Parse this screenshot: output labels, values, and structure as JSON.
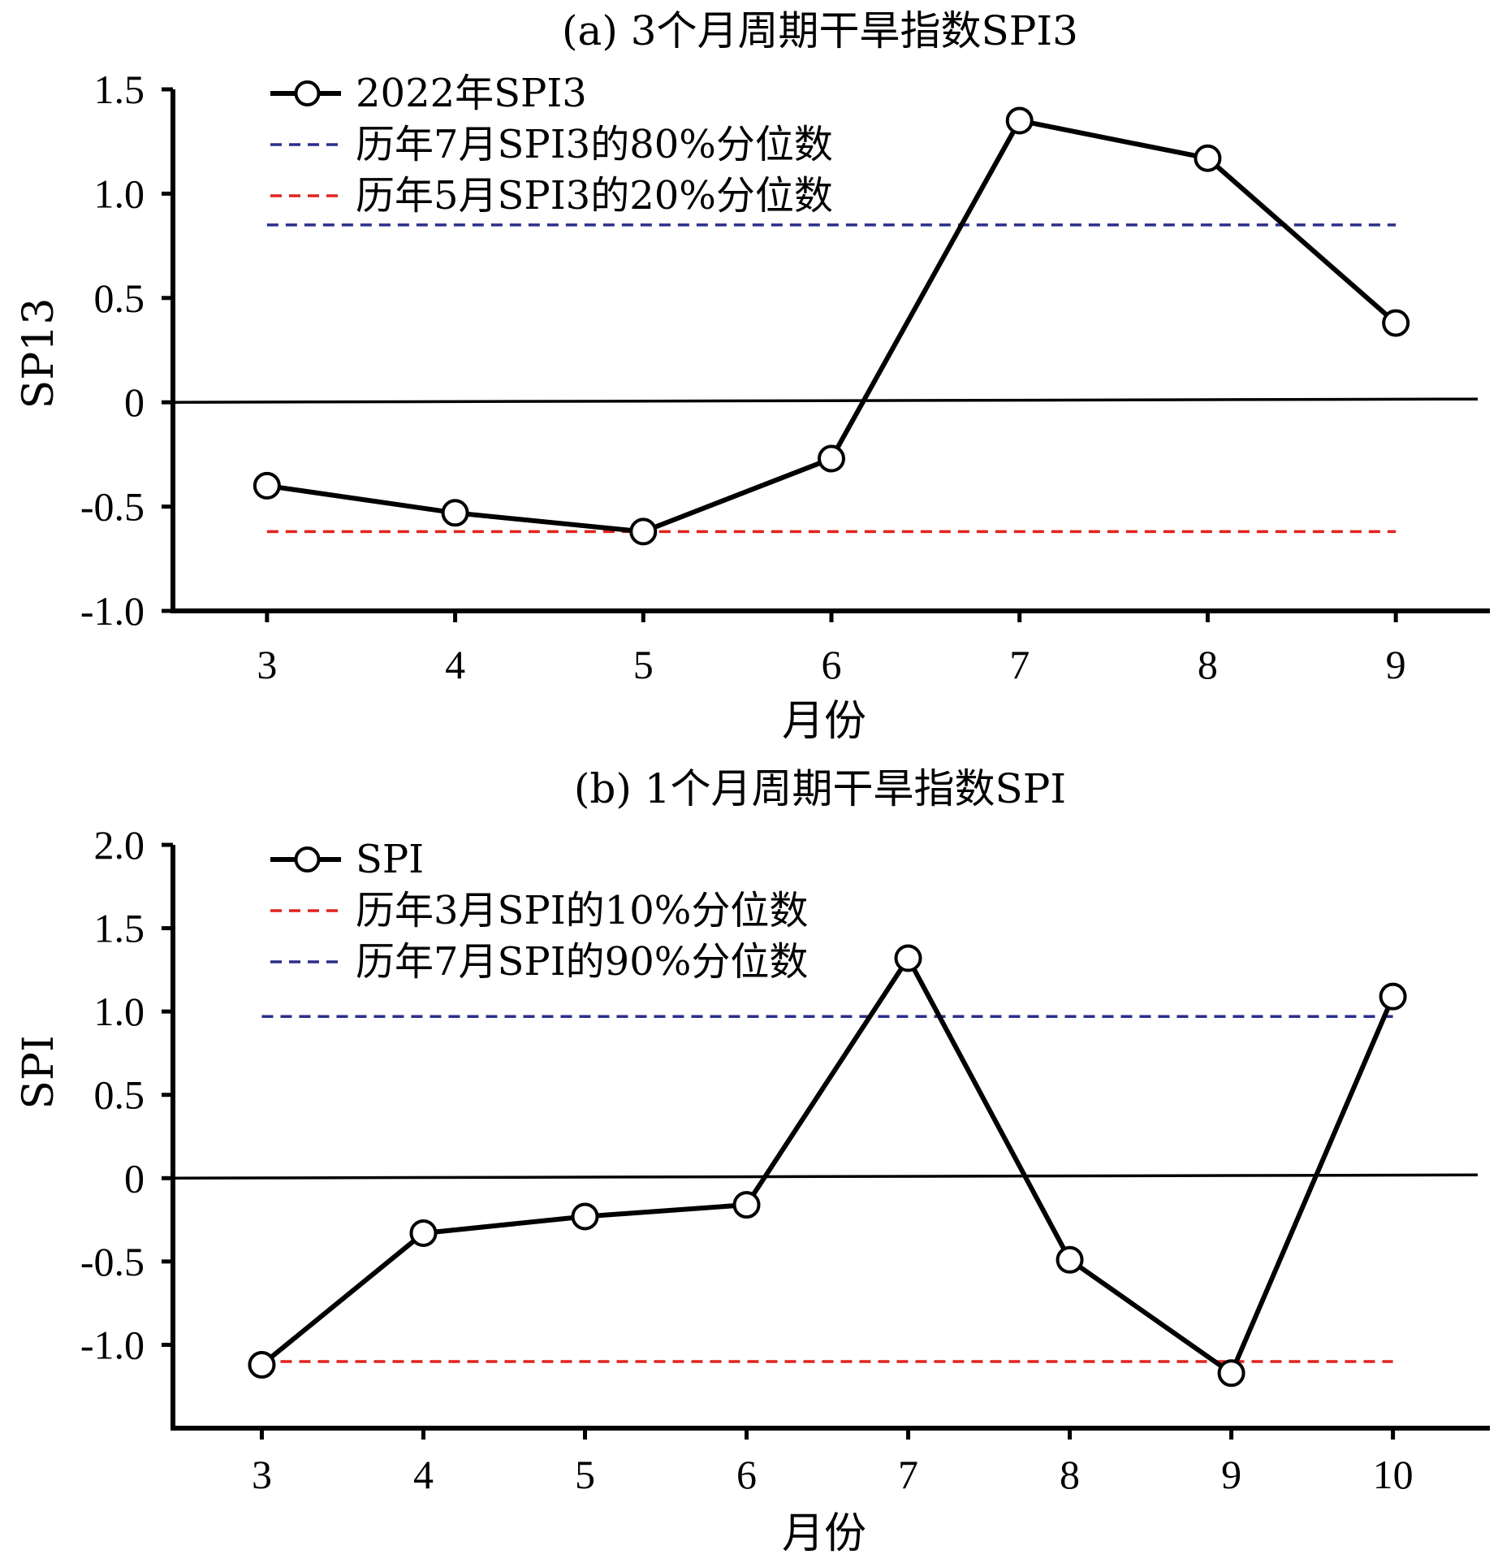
{
  "chart_data": [
    {
      "type": "line",
      "title": "(a) 3个月周期干旱指数SPI3",
      "xlabel": "月份",
      "ylabel": "SP13",
      "x": [
        3,
        4,
        5,
        6,
        7,
        8,
        9
      ],
      "xlim": [
        2.5,
        9.5
      ],
      "ylim": [
        -1.0,
        1.5
      ],
      "yticks": [
        -1.0,
        -0.5,
        0,
        0.5,
        1.0,
        1.5
      ],
      "ytick_labels": [
        "-1.0",
        "-0.5",
        "0",
        "0.5",
        "1.0",
        "1.5"
      ],
      "xtick_labels": [
        "3",
        "4",
        "5",
        "6",
        "7",
        "8",
        "9"
      ],
      "zero_line": true,
      "grid": false,
      "legend_position": "top-left",
      "series": [
        {
          "name": "2022年SPI3",
          "style": "solid-marker",
          "color": "#000000",
          "values": [
            -0.4,
            -0.53,
            -0.62,
            -0.27,
            1.35,
            1.17,
            0.38
          ]
        },
        {
          "name": "历年7月SPI3的80%分位数",
          "style": "dashed",
          "color": "#2b2f8a",
          "value": 0.85
        },
        {
          "name": "历年5月SPI3的20%分位数",
          "style": "dashed",
          "color": "#e0231f",
          "value": -0.62
        }
      ]
    },
    {
      "type": "line",
      "title": "(b) 1个月周期干旱指数SPI",
      "xlabel": "月份",
      "ylabel": "SPI",
      "x": [
        3,
        4,
        5,
        6,
        7,
        8,
        9,
        10
      ],
      "xlim": [
        2.45,
        10.6
      ],
      "ylim": [
        -1.5,
        2.0
      ],
      "yticks": [
        -1.0,
        -0.5,
        0,
        0.5,
        1.0,
        1.5,
        2.0
      ],
      "ytick_labels": [
        "-1.0",
        "-0.5",
        "0",
        "0.5",
        "1.0",
        "1.5",
        "2.0"
      ],
      "xtick_labels": [
        "3",
        "4",
        "5",
        "6",
        "7",
        "8",
        "9",
        "10"
      ],
      "zero_line": true,
      "grid": false,
      "legend_position": "top-left",
      "series": [
        {
          "name": "SPI",
          "style": "solid-marker",
          "color": "#000000",
          "values": [
            -1.12,
            -0.33,
            -0.23,
            -0.16,
            1.32,
            -0.49,
            -1.17,
            1.09
          ]
        },
        {
          "name": "历年3月SPI的10%分位数",
          "style": "dashed",
          "color": "#e0231f",
          "value": -1.1
        },
        {
          "name": "历年7月SPI的90%分位数",
          "style": "dashed",
          "color": "#2b2f8a",
          "value": 0.97
        }
      ]
    }
  ]
}
